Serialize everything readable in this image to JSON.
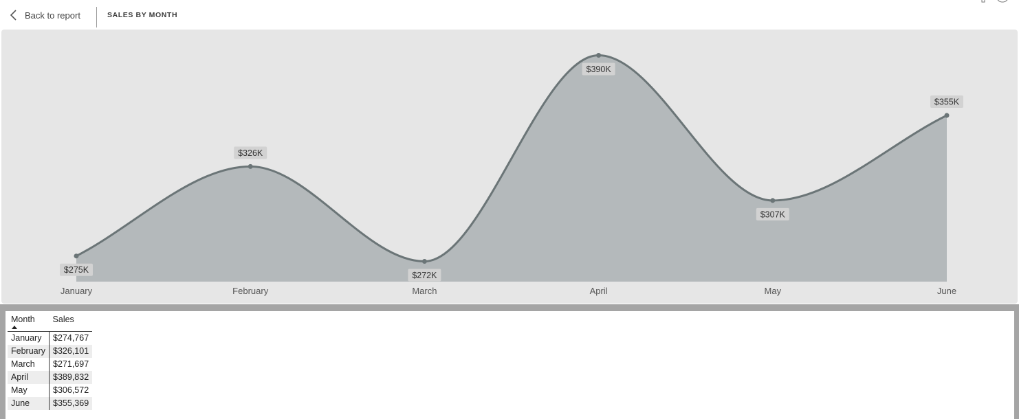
{
  "header": {
    "back_label": "Back to report",
    "title": "SALES BY MONTH"
  },
  "colors": {
    "line": "#6b7577",
    "area": "#b4b9bb",
    "chart_background": "#e6e6e6",
    "label_background": "#d2d2d2"
  },
  "chart_data": {
    "type": "area",
    "smooth": true,
    "categories": [
      "January",
      "February",
      "March",
      "April",
      "May",
      "June"
    ],
    "values": [
      274767,
      326101,
      271697,
      389832,
      306572,
      355369
    ],
    "data_labels": [
      "$275K",
      "$326K",
      "$272K",
      "$390K",
      "$307K",
      "$355K"
    ],
    "data_label_positions": [
      "below",
      "above",
      "below",
      "below",
      "below",
      "above"
    ],
    "title": "",
    "xlabel": "",
    "ylabel": "",
    "grid": false,
    "legend": "none"
  },
  "table": {
    "headers": [
      "Month",
      "Sales"
    ],
    "sort_indicator": "ascending",
    "rows": [
      {
        "month": "January",
        "sales": "$274,767"
      },
      {
        "month": "February",
        "sales": "$326,101"
      },
      {
        "month": "March",
        "sales": "$271,697"
      },
      {
        "month": "April",
        "sales": "$389,832"
      },
      {
        "month": "May",
        "sales": "$306,572"
      },
      {
        "month": "June",
        "sales": "$355,369"
      }
    ]
  }
}
